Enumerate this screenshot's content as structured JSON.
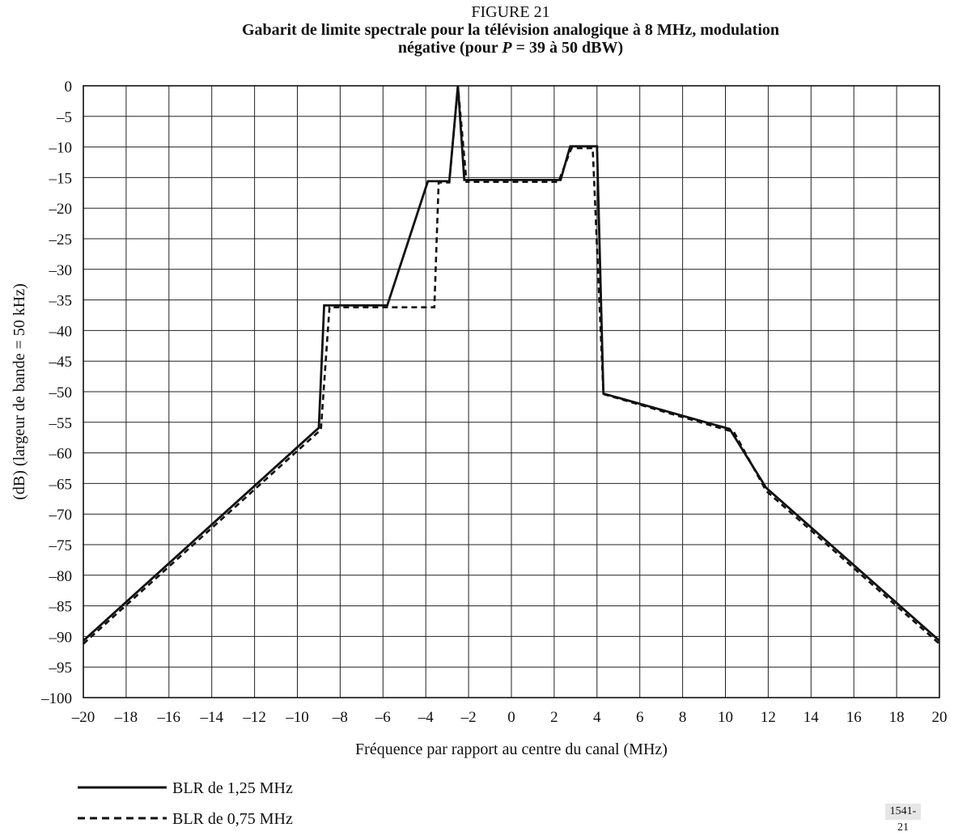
{
  "figure": {
    "number": "FIGURE 21",
    "title_line1": "Gabarit de limite spectrale pour la télévision analogique à 8 MHz, modulation",
    "title_line2_pre": "négative (pour ",
    "title_line2_var": "P",
    "title_line2_post": " = 39 à 50 dBW)",
    "code": "1541-21"
  },
  "chart_data": {
    "type": "line",
    "title": "Gabarit de limite spectrale pour la télévision analogique à 8 MHz, modulation négative (pour P = 39 à 50 dBW)",
    "xlabel": "Fréquence par rapport au centre du canal (MHz)",
    "ylabel": "(dB) (largeur de bande = 50 kHz)",
    "xlim": [
      -20,
      20
    ],
    "ylim": [
      -100,
      0
    ],
    "grid": true,
    "legend_position": "bottom-left",
    "x_ticks": [
      -20,
      -18,
      -16,
      -14,
      -12,
      -10,
      -8,
      -6,
      -4,
      -2,
      0,
      2,
      4,
      6,
      8,
      10,
      12,
      14,
      16,
      18,
      20
    ],
    "y_ticks": [
      0,
      -5,
      -10,
      -15,
      -20,
      -25,
      -30,
      -35,
      -40,
      -45,
      -50,
      -55,
      -60,
      -65,
      -70,
      -75,
      -80,
      -85,
      -90,
      -95,
      -100
    ],
    "x_tick_labels": [
      "–20",
      "–18",
      "–16",
      "–14",
      "–12",
      "–10",
      "–8",
      "–6",
      "–4",
      "–2",
      "0",
      "2",
      "4",
      "6",
      "8",
      "10",
      "12",
      "14",
      "16",
      "18",
      "20"
    ],
    "y_tick_labels": [
      "0",
      "–5",
      "–10",
      "–15",
      "–20",
      "–25",
      "–30",
      "–35",
      "–40",
      "–45",
      "–50",
      "–55",
      "–60",
      "–65",
      "–70",
      "–75",
      "–80",
      "–85",
      "–90",
      "–95",
      "–100"
    ],
    "series": [
      {
        "name": "BLR de 1,25 MHz",
        "style": "solid",
        "color": "#111111",
        "points": [
          [
            -20,
            -90.7
          ],
          [
            -9.0,
            -55.9
          ],
          [
            -8.75,
            -35.9
          ],
          [
            -5.8,
            -35.9
          ],
          [
            -3.9,
            -15.6
          ],
          [
            -2.9,
            -15.6
          ],
          [
            -2.5,
            0
          ],
          [
            -2.2,
            -15.4
          ],
          [
            2.3,
            -15.4
          ],
          [
            2.75,
            -9.9
          ],
          [
            4.0,
            -9.9
          ],
          [
            4.3,
            -50.3
          ],
          [
            10.2,
            -56.1
          ],
          [
            11.9,
            -65.7
          ],
          [
            20,
            -90.7
          ]
        ]
      },
      {
        "name": "BLR de 0,75 MHz",
        "style": "dashed",
        "color": "#111111",
        "points": [
          [
            -20,
            -91.2
          ],
          [
            -8.9,
            -56.2
          ],
          [
            -8.5,
            -36.2
          ],
          [
            -3.6,
            -36.2
          ],
          [
            -3.4,
            -15.8
          ],
          [
            -2.9,
            -15.8
          ],
          [
            -2.5,
            0
          ],
          [
            -2.1,
            -15.7
          ],
          [
            2.2,
            -15.7
          ],
          [
            2.8,
            -10.2
          ],
          [
            3.8,
            -10.2
          ],
          [
            4.3,
            -50.4
          ],
          [
            10.4,
            -56.6
          ],
          [
            11.9,
            -66.2
          ],
          [
            20,
            -91.2
          ]
        ]
      }
    ]
  }
}
